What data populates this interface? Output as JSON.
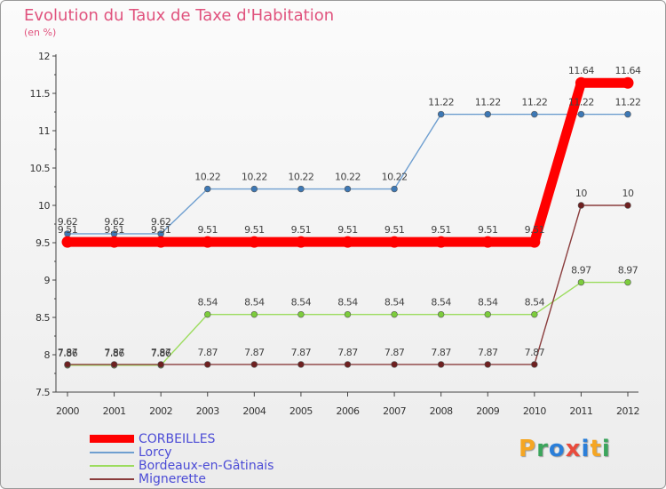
{
  "header": {
    "title": "Evolution du Taux de Taxe d'Habitation",
    "subtitle": "(en %)"
  },
  "brand": {
    "letters": [
      "P",
      "r",
      "o",
      "x",
      "i",
      "t",
      "i"
    ],
    "colors": [
      "#f5a623",
      "#3ba55c",
      "#2b7fd9",
      "#e94b3c",
      "#2b7fd9",
      "#f5a623",
      "#3ba55c"
    ]
  },
  "chart_data": {
    "type": "line",
    "title": "Evolution du Taux de Taxe d'Habitation",
    "ylabel": "(en %)",
    "xlabel": "",
    "x": [
      "2000",
      "2001",
      "2002",
      "2003",
      "2004",
      "2005",
      "2006",
      "2007",
      "2008",
      "2009",
      "2010",
      "2011",
      "2012"
    ],
    "ylim": [
      7.5,
      12
    ],
    "yticks": [
      "7.5",
      "8",
      "8.5",
      "9",
      "9.5",
      "10",
      "10.5",
      "11",
      "11.5",
      "12"
    ],
    "grid": false,
    "legend_position": "bottom-left",
    "series": [
      {
        "name": "Lorcy",
        "color": "#6f9fd0",
        "marker": "#3d78b5",
        "values": [
          9.62,
          9.62,
          9.62,
          10.22,
          10.22,
          10.22,
          10.22,
          10.22,
          11.22,
          11.22,
          11.22,
          11.22,
          11.22
        ],
        "labels": [
          "9.62",
          "9.62",
          "9.62",
          "10.22",
          "10.22",
          "10.22",
          "10.22",
          "10.22",
          "11.22",
          "11.22",
          "11.22",
          "11.22",
          "11.22"
        ]
      },
      {
        "name": "Bordeaux-en-Gâtinais",
        "color": "#9cdc5e",
        "marker": "#7ccc3c",
        "values": [
          7.86,
          7.86,
          7.86,
          8.54,
          8.54,
          8.54,
          8.54,
          8.54,
          8.54,
          8.54,
          8.54,
          8.97,
          8.97
        ],
        "labels": [
          "7.86",
          "7.86",
          "7.86",
          "8.54",
          "8.54",
          "8.54",
          "8.54",
          "8.54",
          "8.54",
          "8.54",
          "8.54",
          "8.97",
          "8.97"
        ]
      },
      {
        "name": "Mignerette",
        "color": "#8a3c3c",
        "marker": "#6e2020",
        "values": [
          7.87,
          7.87,
          7.87,
          7.87,
          7.87,
          7.87,
          7.87,
          7.87,
          7.87,
          7.87,
          7.87,
          10,
          10
        ],
        "labels": [
          "7.87",
          "7.87",
          "7.87",
          "7.87",
          "7.87",
          "7.87",
          "7.87",
          "7.87",
          "7.87",
          "7.87",
          "7.87",
          "10",
          "10"
        ]
      },
      {
        "name": "CORBEILLES",
        "color": "#ff0000",
        "marker": "#ff0000",
        "highlight": true,
        "values": [
          9.51,
          9.51,
          9.51,
          9.51,
          9.51,
          9.51,
          9.51,
          9.51,
          9.51,
          9.51,
          9.51,
          11.64,
          11.64
        ],
        "labels": [
          "9.51",
          "9.51",
          "9.51",
          "9.51",
          "9.51",
          "9.51",
          "9.51",
          "9.51",
          "9.51",
          "9.51",
          "9.51",
          "11.64",
          "11.64"
        ]
      }
    ],
    "legend": [
      {
        "name": "CORBEILLES",
        "color": "#ff0000",
        "thick": true
      },
      {
        "name": "Lorcy",
        "color": "#6f9fd0",
        "thick": false
      },
      {
        "name": "Bordeaux-en-Gâtinais",
        "color": "#9cdc5e",
        "thick": false
      },
      {
        "name": "Mignerette",
        "color": "#8a3c3c",
        "thick": false
      }
    ]
  }
}
